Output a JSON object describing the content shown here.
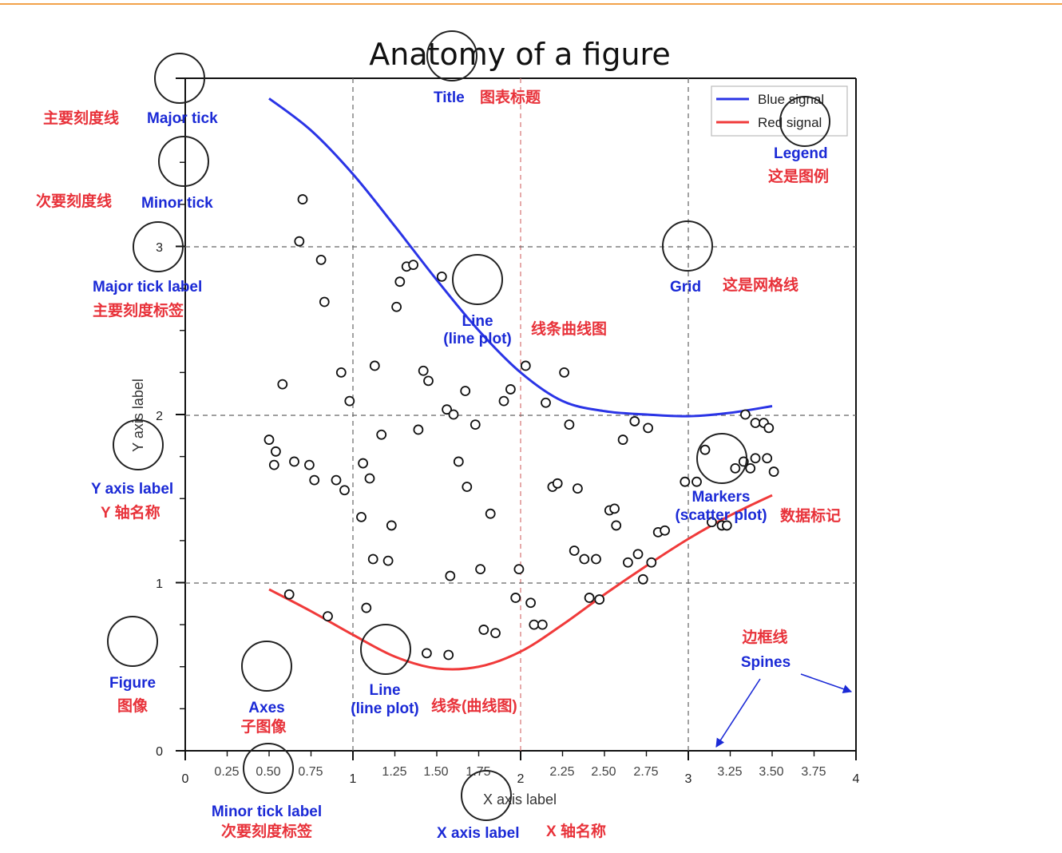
{
  "title": "Anatomy of a figure",
  "axes": {
    "xlabel": "X axis label",
    "ylabel": "Y axis label",
    "x_ticks_major": [
      "0",
      "1",
      "2",
      "3",
      "4"
    ],
    "x_ticks_minor": [
      "0.25",
      "0.50",
      "0.75",
      "1.25",
      "1.50",
      "1.75",
      "2.25",
      "2.50",
      "2.75",
      "3.25",
      "3.50",
      "3.75"
    ],
    "y_ticks_major": [
      "0",
      "1",
      "2",
      "3"
    ]
  },
  "legend": {
    "items": [
      {
        "label": "Blue signal"
      },
      {
        "label": "Red signal"
      }
    ]
  },
  "annotations": {
    "title": {
      "en": "Title",
      "zh": "图表标题"
    },
    "major_tick": {
      "en": "Major tick",
      "zh": "主要刻度线"
    },
    "minor_tick": {
      "en": "Minor tick",
      "zh": "次要刻度线"
    },
    "major_tick_label": {
      "en": "Major tick label",
      "zh": "主要刻度标签"
    },
    "legend": {
      "en": "Legend",
      "zh": "这是图例"
    },
    "grid": {
      "en": "Grid",
      "zh": "这是网格线"
    },
    "line_top": {
      "en1": "Line",
      "en2": "(line plot)",
      "zh": "线条曲线图"
    },
    "markers": {
      "en1": "Markers",
      "en2": "(scatter plot)",
      "zh": "数据标记"
    },
    "y_axis_label": {
      "en": "Y axis label",
      "zh": "Y 轴名称"
    },
    "figure": {
      "en": "Figure",
      "zh": "图像"
    },
    "axes": {
      "en": "Axes",
      "zh": "子图像"
    },
    "line_bottom": {
      "en1": "Line",
      "en2": "(line plot)",
      "zh": "线条(曲线图)"
    },
    "spines": {
      "en": "Spines",
      "zh": "边框线"
    },
    "minor_tick_label": {
      "en": "Minor tick label",
      "zh": "次要刻度标签"
    },
    "x_axis_label": {
      "en": "X axis label",
      "zh": "X 轴名称"
    }
  },
  "colors": {
    "blue": "#2a34e6",
    "red": "#f03a3a",
    "annotation_blue": "#1b2ad6",
    "annotation_red": "#e8323a",
    "accent_rule": "#f2a24a"
  },
  "chart_data": {
    "type": "line",
    "xlim": [
      0,
      4
    ],
    "ylim": [
      0,
      4
    ],
    "grid": true,
    "legend_position": "top-right",
    "series": [
      {
        "name": "Blue signal",
        "type": "line",
        "color": "#2a34e6",
        "x": [
          0.5,
          0.75,
          1.0,
          1.25,
          1.5,
          1.75,
          2.0,
          2.25,
          2.5,
          2.75,
          3.0,
          3.25,
          3.5
        ],
        "y": [
          3.88,
          3.69,
          3.43,
          3.12,
          2.8,
          2.5,
          2.25,
          2.08,
          2.02,
          2.0,
          1.99,
          2.01,
          2.05
        ]
      },
      {
        "name": "Red signal",
        "type": "line",
        "color": "#f03a3a",
        "x": [
          0.5,
          0.75,
          1.0,
          1.25,
          1.5,
          1.75,
          2.0,
          2.25,
          2.5,
          2.75,
          3.0,
          3.25,
          3.5
        ],
        "y": [
          0.96,
          0.83,
          0.69,
          0.56,
          0.49,
          0.5,
          0.59,
          0.75,
          0.93,
          1.1,
          1.26,
          1.4,
          1.52
        ]
      },
      {
        "name": "",
        "type": "scatter",
        "points": [
          [
            0.7,
            3.28
          ],
          [
            0.68,
            3.03
          ],
          [
            0.81,
            2.92
          ],
          [
            0.83,
            2.67
          ],
          [
            0.58,
            2.18
          ],
          [
            0.93,
            2.25
          ],
          [
            0.98,
            2.08
          ],
          [
            0.5,
            1.85
          ],
          [
            0.54,
            1.78
          ],
          [
            0.53,
            1.7
          ],
          [
            0.65,
            1.72
          ],
          [
            0.74,
            1.7
          ],
          [
            0.77,
            1.61
          ],
          [
            0.9,
            1.61
          ],
          [
            0.95,
            1.55
          ],
          [
            1.06,
            1.71
          ],
          [
            1.05,
            1.39
          ],
          [
            1.1,
            1.62
          ],
          [
            1.13,
            2.29
          ],
          [
            1.17,
            1.88
          ],
          [
            1.23,
            1.34
          ],
          [
            1.21,
            1.13
          ],
          [
            1.26,
            2.64
          ],
          [
            1.28,
            2.79
          ],
          [
            1.32,
            2.88
          ],
          [
            1.36,
            2.89
          ],
          [
            1.39,
            1.91
          ],
          [
            1.42,
            2.26
          ],
          [
            1.45,
            2.2
          ],
          [
            1.53,
            2.82
          ],
          [
            1.56,
            2.03
          ],
          [
            1.6,
            2.0
          ],
          [
            1.63,
            1.72
          ],
          [
            1.67,
            2.14
          ],
          [
            1.68,
            1.57
          ],
          [
            1.73,
            1.94
          ],
          [
            1.76,
            1.08
          ],
          [
            1.78,
            0.72
          ],
          [
            1.85,
            0.7
          ],
          [
            1.82,
            1.41
          ],
          [
            1.9,
            2.08
          ],
          [
            1.94,
            2.15
          ],
          [
            1.97,
            0.91
          ],
          [
            1.99,
            1.08
          ],
          [
            2.03,
            2.29
          ],
          [
            2.06,
            0.88
          ],
          [
            2.08,
            0.75
          ],
          [
            2.13,
            0.75
          ],
          [
            2.15,
            2.07
          ],
          [
            2.19,
            1.57
          ],
          [
            2.22,
            1.59
          ],
          [
            2.26,
            2.25
          ],
          [
            2.29,
            1.94
          ],
          [
            2.32,
            1.19
          ],
          [
            2.34,
            1.56
          ],
          [
            2.38,
            1.14
          ],
          [
            2.41,
            0.91
          ],
          [
            2.45,
            1.14
          ],
          [
            2.47,
            0.9
          ],
          [
            2.53,
            1.43
          ],
          [
            2.56,
            1.44
          ],
          [
            2.57,
            1.34
          ],
          [
            2.61,
            1.85
          ],
          [
            2.64,
            1.12
          ],
          [
            2.68,
            1.96
          ],
          [
            2.7,
            1.17
          ],
          [
            2.73,
            1.02
          ],
          [
            2.76,
            1.92
          ],
          [
            2.78,
            1.12
          ],
          [
            2.82,
            1.3
          ],
          [
            2.86,
            1.31
          ],
          [
            2.98,
            1.6
          ],
          [
            3.05,
            1.6
          ],
          [
            3.1,
            1.79
          ],
          [
            3.14,
            1.36
          ],
          [
            3.2,
            1.34
          ],
          [
            3.23,
            1.34
          ],
          [
            3.28,
            1.68
          ],
          [
            3.33,
            1.72
          ],
          [
            3.37,
            1.68
          ],
          [
            3.4,
            1.74
          ],
          [
            3.47,
            1.74
          ],
          [
            3.51,
            1.66
          ],
          [
            3.34,
            2.0
          ],
          [
            3.4,
            1.95
          ],
          [
            3.45,
            1.95
          ],
          [
            3.48,
            1.92
          ],
          [
            1.58,
            1.04
          ],
          [
            1.44,
            0.58
          ],
          [
            1.57,
            0.57
          ],
          [
            1.08,
            0.85
          ],
          [
            0.85,
            0.8
          ],
          [
            0.62,
            0.93
          ],
          [
            1.12,
            1.14
          ]
        ]
      }
    ]
  }
}
